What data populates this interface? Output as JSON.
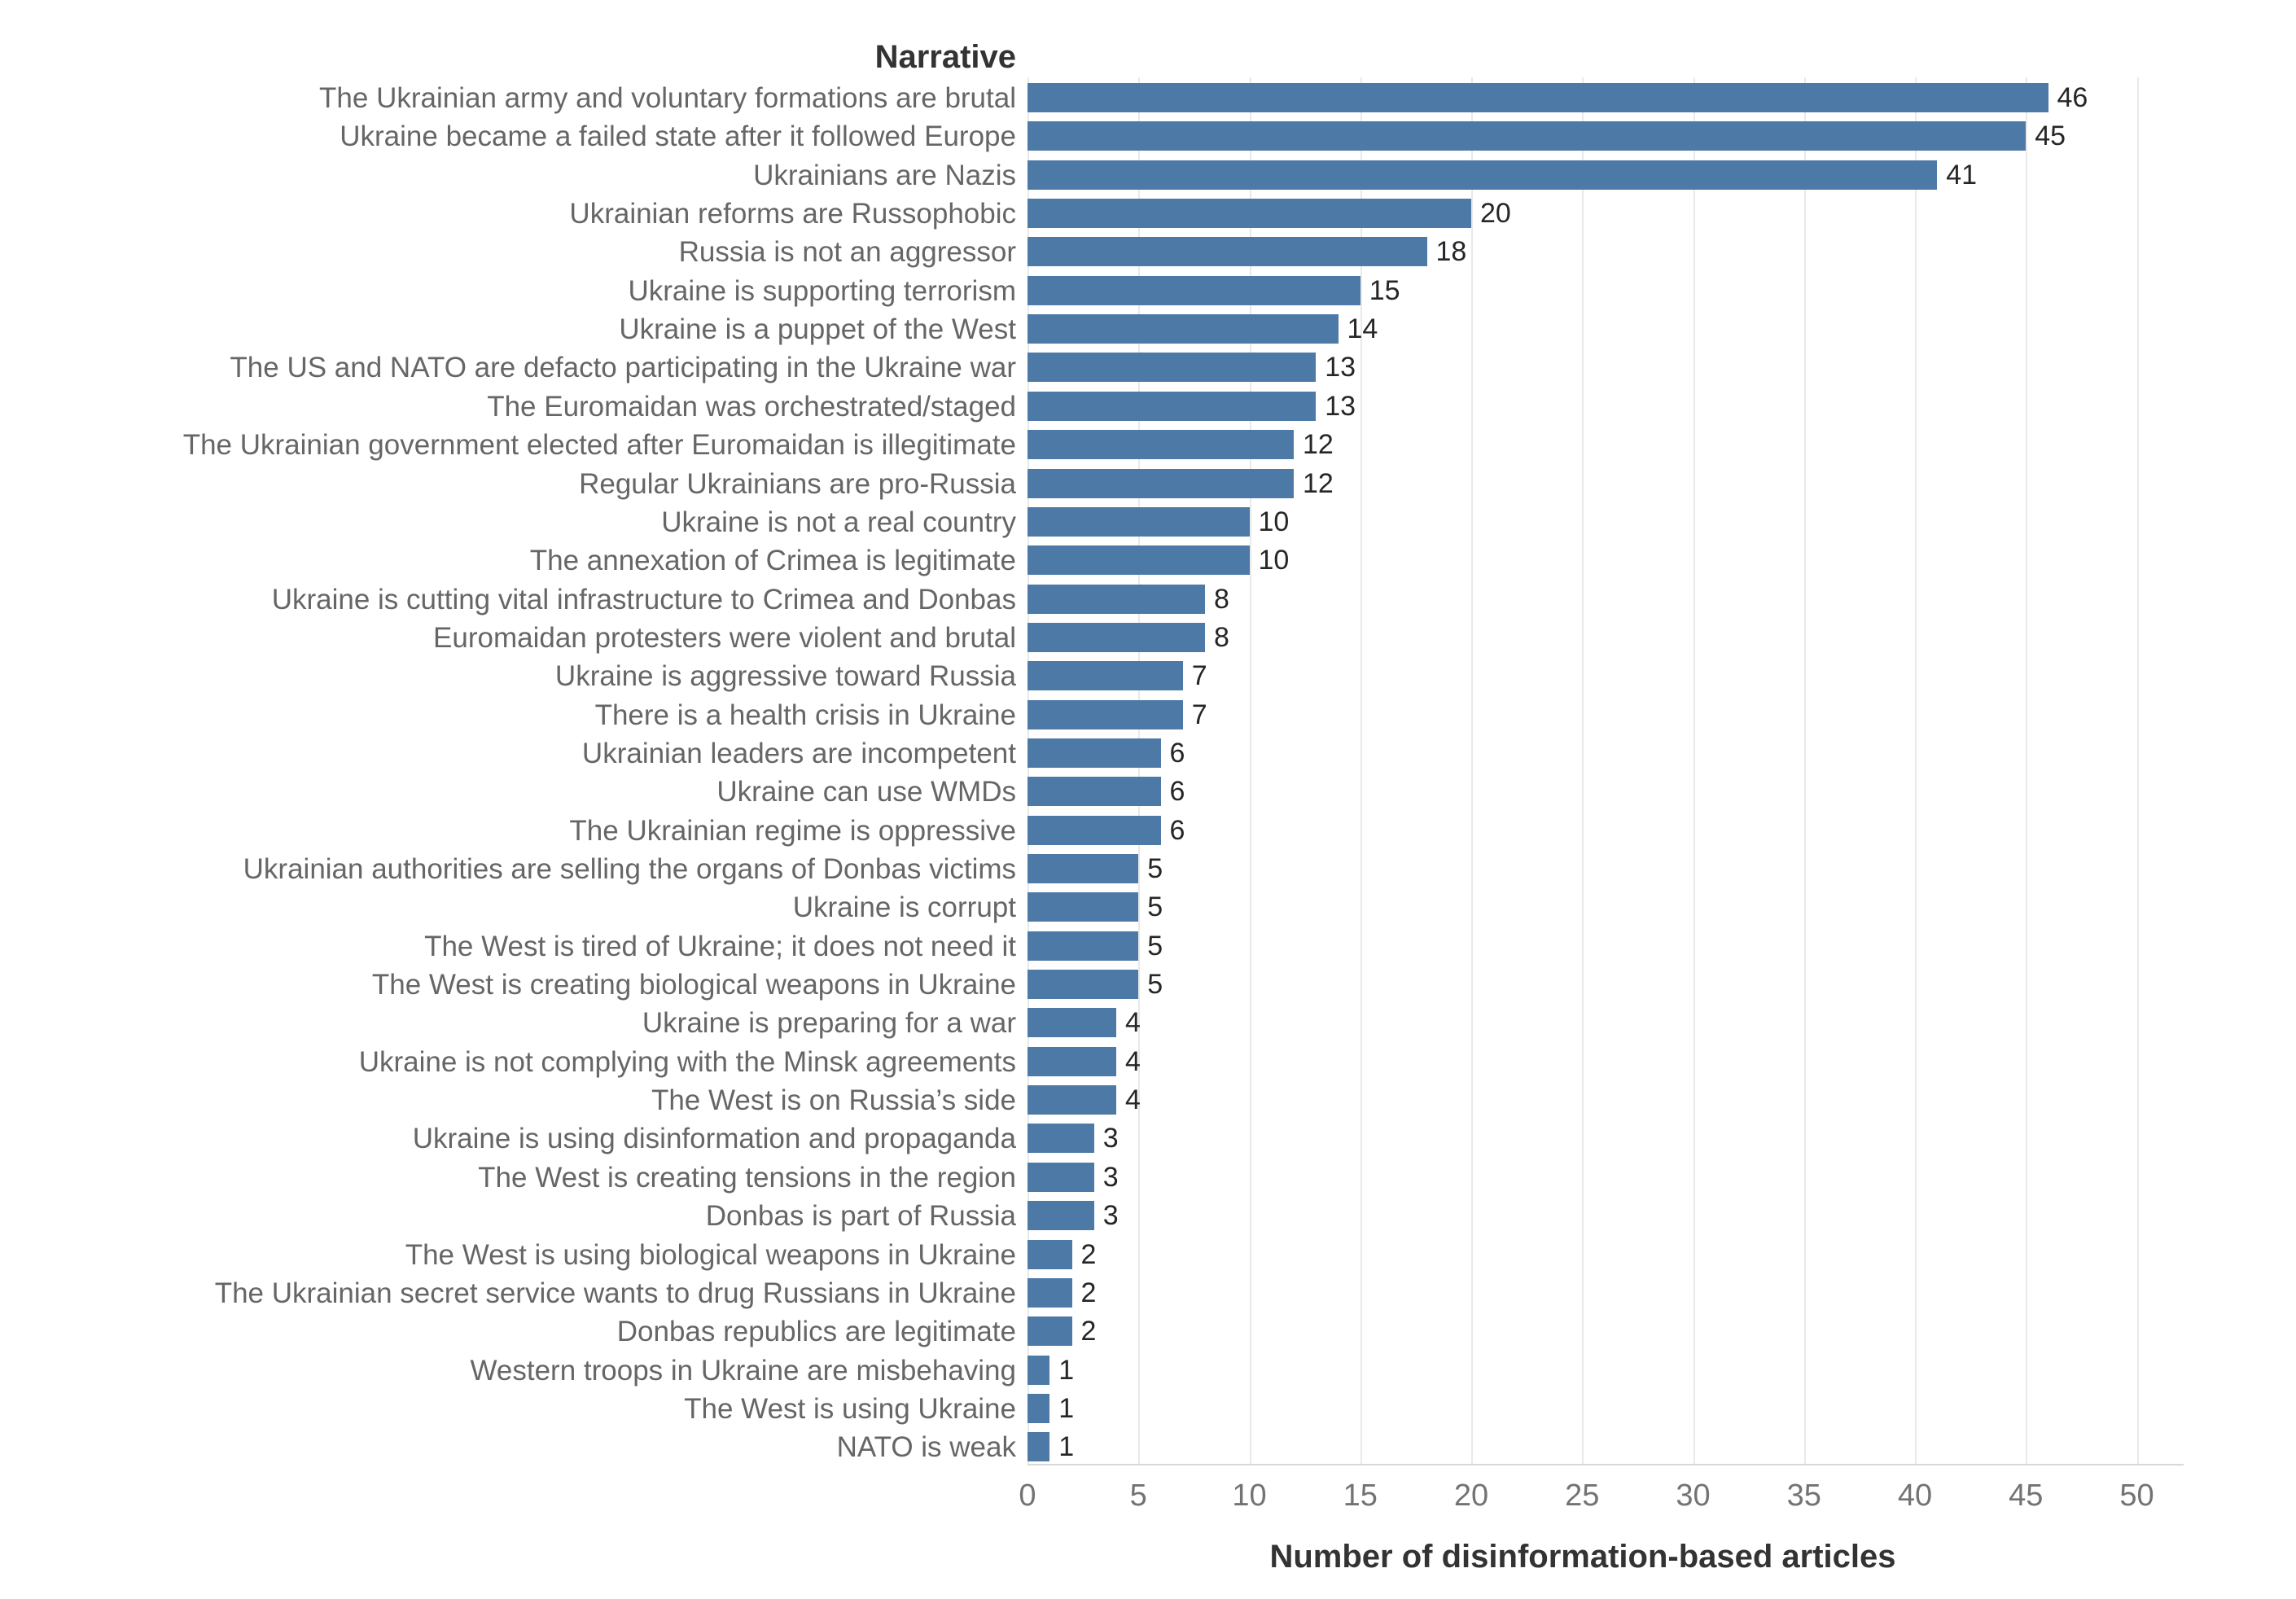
{
  "chart_data": {
    "type": "bar",
    "orientation": "horizontal",
    "row_header": "Narrative",
    "xlabel": "Number of disinformation-based articles",
    "xlim": [
      0,
      52
    ],
    "x_ticks": [
      0,
      5,
      10,
      15,
      20,
      25,
      30,
      35,
      40,
      45,
      50
    ],
    "grid": "vertical-light",
    "legend": "none",
    "bar_color": "#4d79a7",
    "categories": [
      "The Ukrainian army and voluntary formations are brutal",
      "Ukraine became a failed state after it followed Europe",
      "Ukrainians are Nazis",
      "Ukrainian reforms are Russophobic",
      "Russia is not an aggressor",
      "Ukraine is supporting terrorism",
      "Ukraine is a puppet of the West",
      "The US and NATO are defacto participating in the Ukraine war",
      "The Euromaidan was orchestrated/staged",
      "The Ukrainian government elected after Euromaidan is illegitimate",
      "Regular Ukrainians are pro-Russia",
      "Ukraine is not a real country",
      "The annexation of Crimea is legitimate",
      "Ukraine is cutting vital infrastructure to Crimea and Donbas",
      "Euromaidan protesters were violent and brutal",
      "Ukraine is aggressive toward Russia",
      "There is a health crisis in Ukraine",
      "Ukrainian leaders are incompetent",
      "Ukraine can use WMDs",
      "The Ukrainian regime is oppressive",
      "Ukrainian authorities are selling the organs of Donbas victims",
      "Ukraine is corrupt",
      "The West is tired of Ukraine; it does not need it",
      "The West is creating biological weapons in Ukraine",
      "Ukraine is preparing for a war",
      "Ukraine is not complying with the Minsk agreements",
      "The West is on Russia’s side",
      "Ukraine is using disinformation and propaganda",
      "The West is creating tensions in the region",
      "Donbas is part of Russia",
      "The West is using biological weapons in Ukraine",
      "The Ukrainian secret service wants to drug Russians in Ukraine",
      "Donbas republics are legitimate",
      "Western troops in Ukraine are misbehaving",
      "The West is using Ukraine",
      "NATO is weak"
    ],
    "values": [
      46,
      45,
      41,
      20,
      18,
      15,
      14,
      13,
      13,
      12,
      12,
      10,
      10,
      8,
      8,
      7,
      7,
      6,
      6,
      6,
      5,
      5,
      5,
      5,
      4,
      4,
      4,
      3,
      3,
      3,
      2,
      2,
      2,
      1,
      1,
      1
    ]
  },
  "colors": {
    "bar": "#4d79a7",
    "category_label": "#666666",
    "value_label": "#262626",
    "tick_label": "#737373",
    "axis_title": "#333333",
    "header": "#333333",
    "gridline": "#e9e9e9",
    "axis_line": "#d9d9d9",
    "background": "#ffffff"
  }
}
